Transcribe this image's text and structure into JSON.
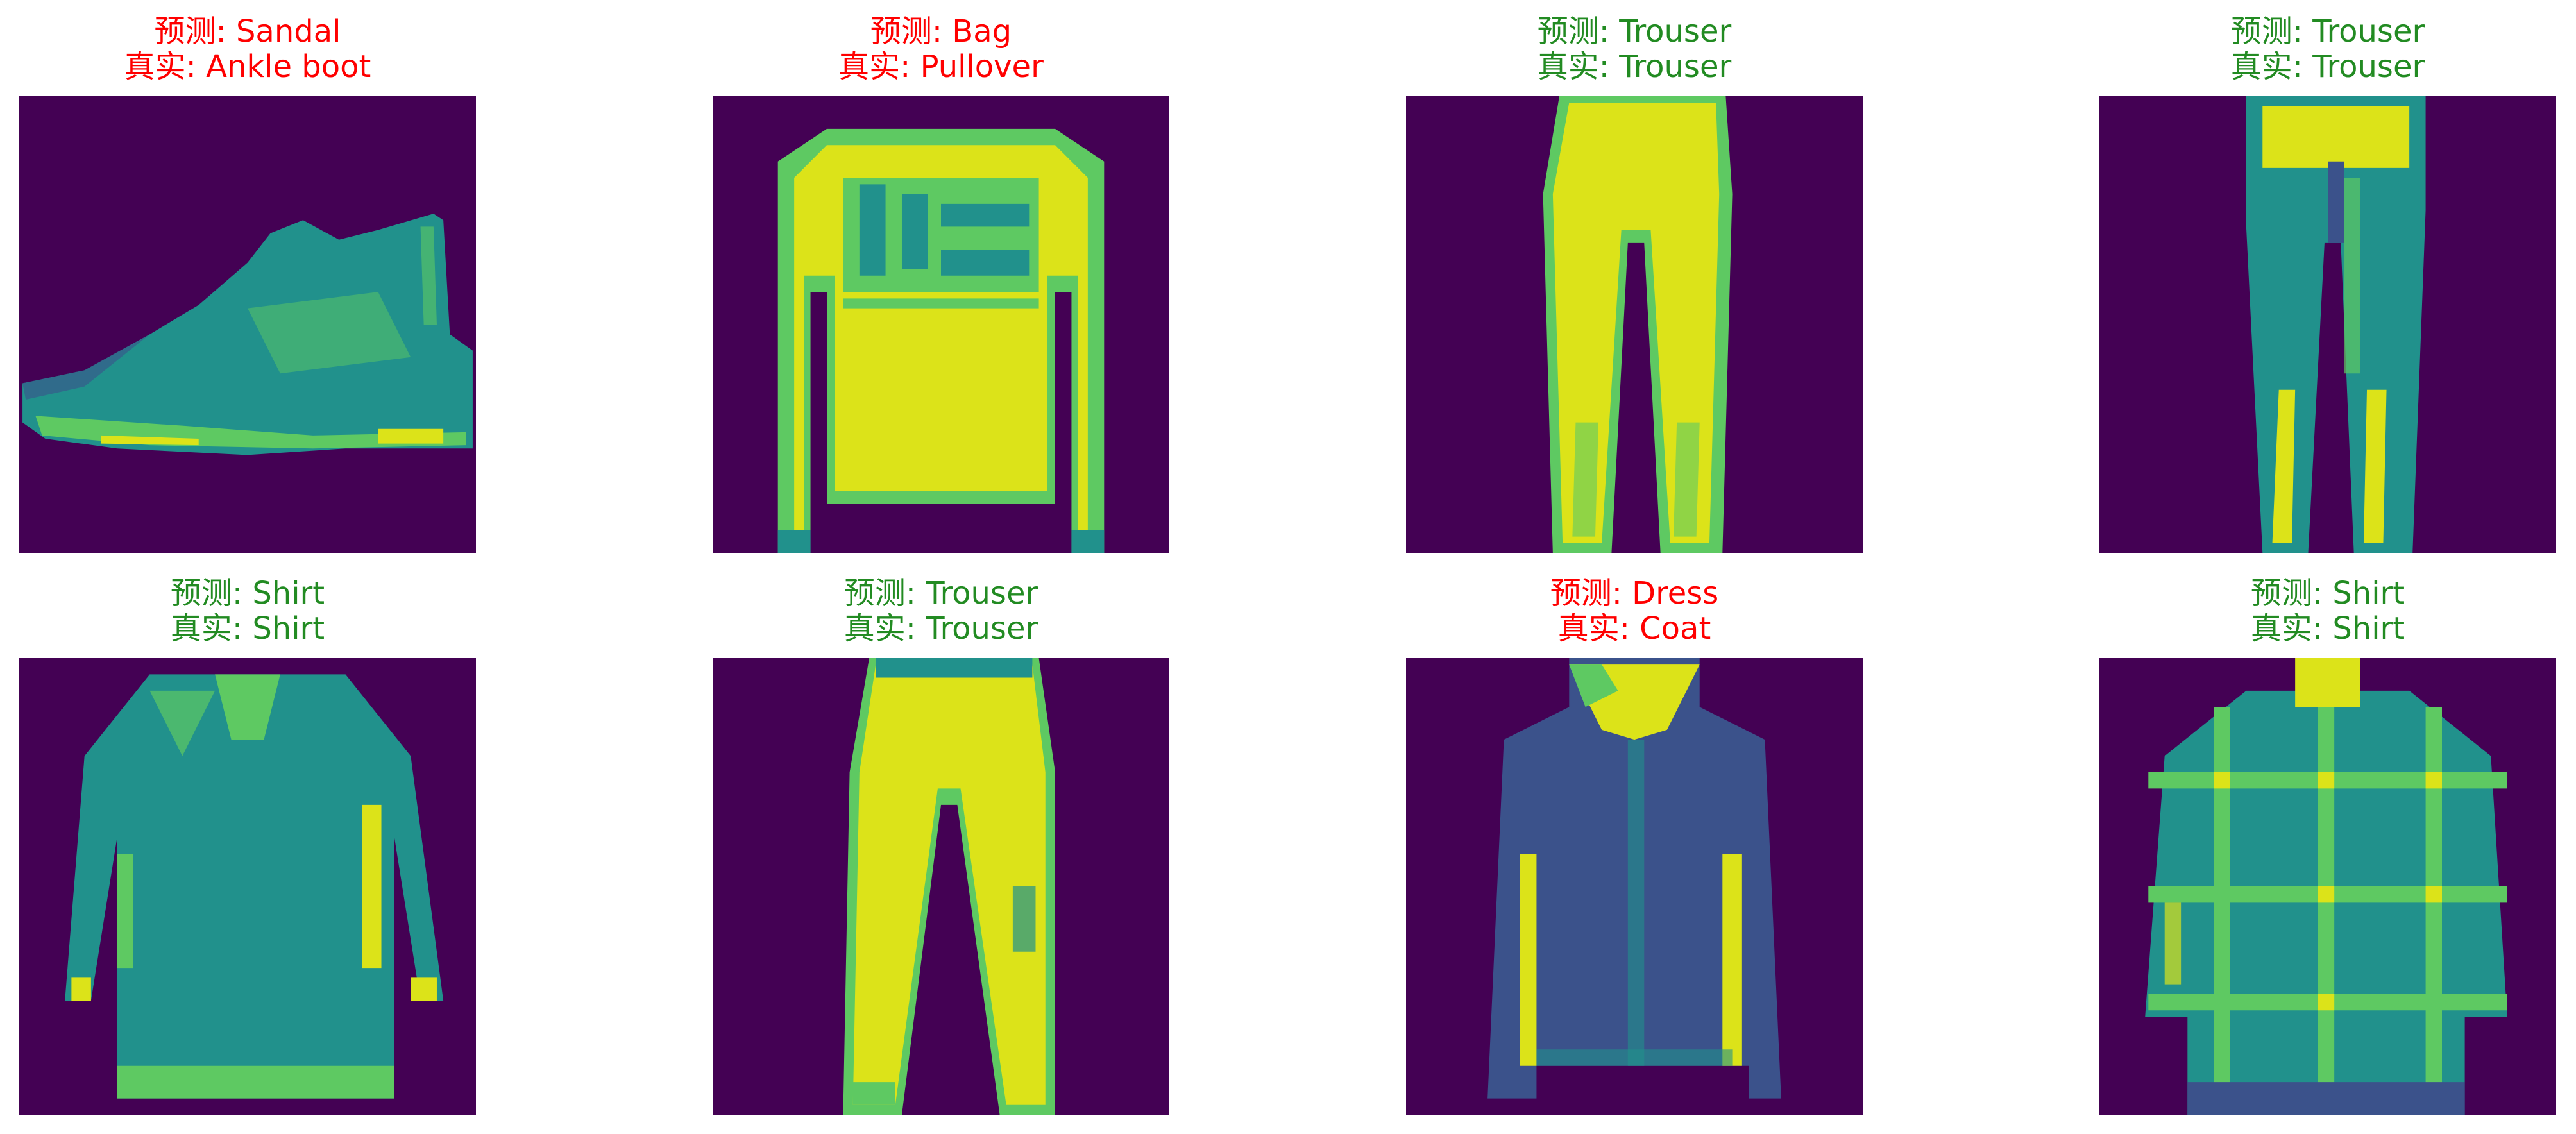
{
  "colors": {
    "correct": "#228B22",
    "incorrect": "#FF0000",
    "background": "#440154",
    "low": "#3B528B",
    "mid": "#21918C",
    "high": "#5EC962",
    "peak": "#DCE319"
  },
  "panels": [
    {
      "pred": "预测: Sandal",
      "truth": "真实: Ankle boot",
      "correct": false,
      "item": "ankle-boot"
    },
    {
      "pred": "预测: Bag",
      "truth": "真实: Pullover",
      "correct": false,
      "item": "pullover"
    },
    {
      "pred": "预测: Trouser",
      "truth": "真实: Trouser",
      "correct": true,
      "item": "trouser"
    },
    {
      "pred": "预测: Trouser",
      "truth": "真实: Trouser",
      "correct": true,
      "item": "trouser"
    },
    {
      "pred": "预测: Shirt",
      "truth": "真实: Shirt",
      "correct": true,
      "item": "shirt"
    },
    {
      "pred": "预测: Trouser",
      "truth": "真实: Trouser",
      "correct": true,
      "item": "trouser"
    },
    {
      "pred": "预测: Dress",
      "truth": "真实: Coat",
      "correct": false,
      "item": "coat"
    },
    {
      "pred": "预测: Shirt",
      "truth": "真实: Shirt",
      "correct": true,
      "item": "shirt"
    }
  ]
}
